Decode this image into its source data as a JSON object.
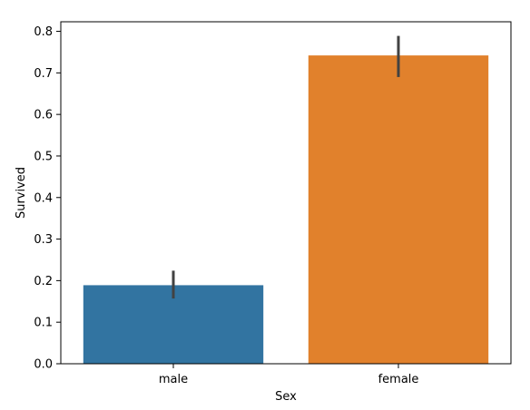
{
  "chart_data": {
    "type": "bar",
    "categories": [
      "male",
      "female"
    ],
    "values": [
      0.189,
      0.742
    ],
    "error_bars": [
      {
        "low": 0.157,
        "high": 0.224
      },
      {
        "low": 0.69,
        "high": 0.789
      }
    ],
    "colors": [
      "#3274a1",
      "#e1812c"
    ],
    "error_bar_color": "#424242",
    "xlabel": "Sex",
    "ylabel": "Survived",
    "ylim": [
      0,
      0.823
    ],
    "yticks": [
      0.0,
      0.1,
      0.2,
      0.3,
      0.4,
      0.5,
      0.6,
      0.7,
      0.8
    ],
    "ytick_labels": [
      "0.0",
      "0.1",
      "0.2",
      "0.3",
      "0.4",
      "0.5",
      "0.6",
      "0.7",
      "0.8"
    ],
    "grid": false,
    "legend": "none"
  }
}
